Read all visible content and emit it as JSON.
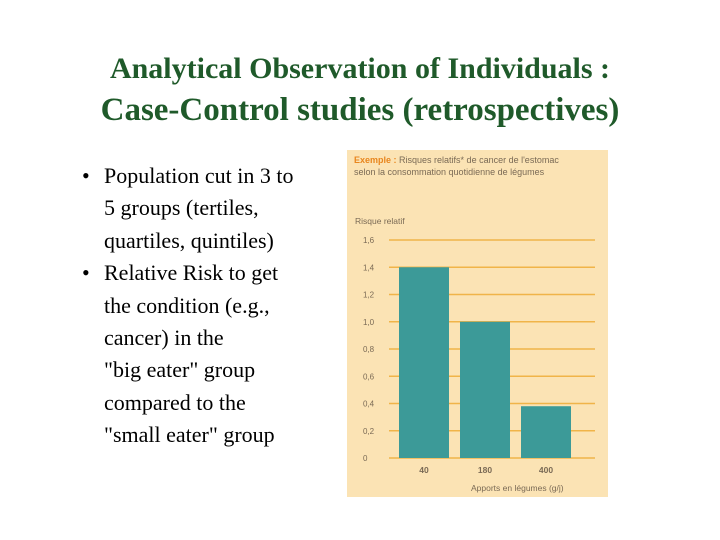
{
  "slide": {
    "title_line1_normal": "Analytical Observation of ",
    "title_line1_bold": "Individuals :",
    "title_line2_bold": "Case-Control",
    "title_line2_normal": " studies (retrospectives)",
    "bullet_symbol": "•",
    "bullets": [
      [
        "Population cut in 3 to",
        "5 groups (tertiles,",
        "quartiles, quintiles)"
      ],
      [
        "Relative Risk to get",
        "the condition (e.g.,",
        "cancer) in the",
        "\"big eater\" group",
        "compared to the",
        "\"small eater\" group"
      ]
    ]
  },
  "chart_data": {
    "type": "bar",
    "caption_bold": "Exemple :",
    "caption_line1": " Risques relatifs* de cancer de l'estomac",
    "caption_line2": "selon la consommation quotidienne de légumes",
    "ylabel": "Risque relatif",
    "xlabel": "Apports en légumes (g/j)",
    "categories": [
      "40",
      "180",
      "400"
    ],
    "values": [
      1.4,
      1.0,
      0.38
    ],
    "ylim": [
      0,
      1.6
    ],
    "yticks": [
      0,
      0.2,
      0.4,
      0.6,
      0.8,
      1.0,
      1.2,
      1.4,
      1.6
    ],
    "ytick_labels": [
      "0",
      "0,2",
      "0,4",
      "0,6",
      "0,8",
      "1,0",
      "1,2",
      "1,4",
      "1,6"
    ],
    "grid": true,
    "colors": {
      "bar": "#3c9a98",
      "grid": "#f0b449",
      "panel": "#fbe3b4",
      "caption_bold": "#e8861e",
      "text": "#7a6a55"
    }
  }
}
